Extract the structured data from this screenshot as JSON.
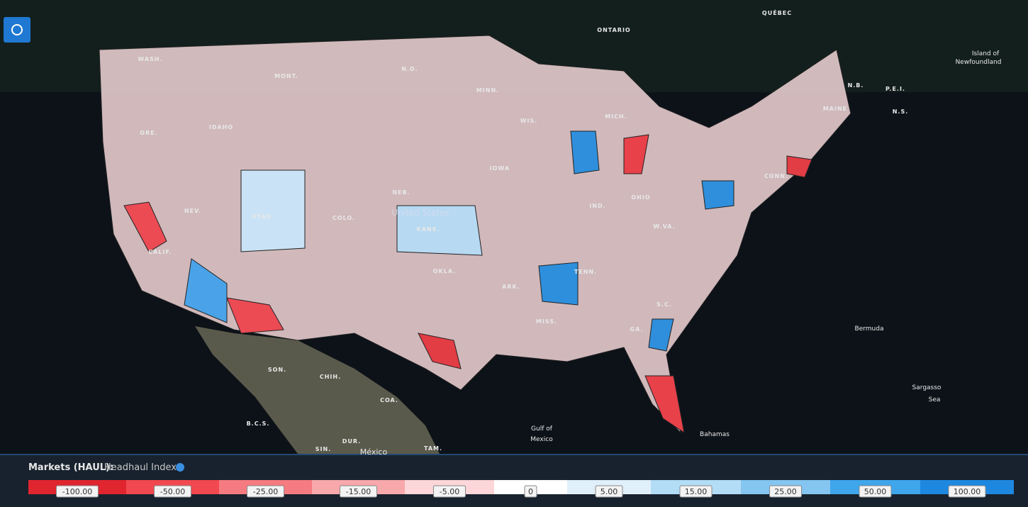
{
  "map_labels": [
    "ONTARIO",
    "QUÉBEC",
    "Island of",
    "Newfoundland",
    "N.B.",
    "P.E.I.",
    "N.S.",
    "MAINE",
    "WASH.",
    "IDAHO",
    "ORE.",
    "MONT.",
    "N.D.",
    "MINN.",
    "WIS.",
    "MICH.",
    "IOWA",
    "NEB.",
    "KANS.",
    "United States",
    "COLO.",
    "UTAH",
    "NEV.",
    "CALIF.",
    "OKLA.",
    "ARK.",
    "MISS.",
    "TENN.",
    "IND.",
    "OHIO",
    "W.VA.",
    "S.C.",
    "GA.",
    "CONN.",
    "Bermuda",
    "Sargasso",
    "Sea",
    "Gulf of",
    "Mexico",
    "Bahamas",
    "México",
    "SON.",
    "CHIH.",
    "COA.",
    "B.C.S.",
    "SIN.",
    "DUR.",
    "TAM."
  ],
  "legend": {
    "title": "Markets (HAUL):",
    "subtitle": "Headhaul Index",
    "bins": [
      {
        "value": -100,
        "label": "-100.00",
        "color": "#e0252f"
      },
      {
        "value": -50,
        "label": "-50.00",
        "color": "#f2484f"
      },
      {
        "value": -25,
        "label": "-25.00",
        "color": "#f57b80"
      },
      {
        "value": -15,
        "label": "-15.00",
        "color": "#f8a8ab"
      },
      {
        "value": -5,
        "label": "-5.00",
        "color": "#fcd6d8"
      },
      {
        "value": 0,
        "label": "0",
        "color": "#ffffff"
      },
      {
        "value": 5,
        "label": "5.00",
        "color": "#e0f0fb"
      },
      {
        "value": 15,
        "label": "15.00",
        "color": "#b3dcf6"
      },
      {
        "value": 25,
        "label": "25.00",
        "color": "#84c5f1"
      },
      {
        "value": 50,
        "label": "50.00",
        "color": "#3fa6ec"
      },
      {
        "value": 100,
        "label": "100.00",
        "color": "#1e88e0"
      }
    ]
  }
}
